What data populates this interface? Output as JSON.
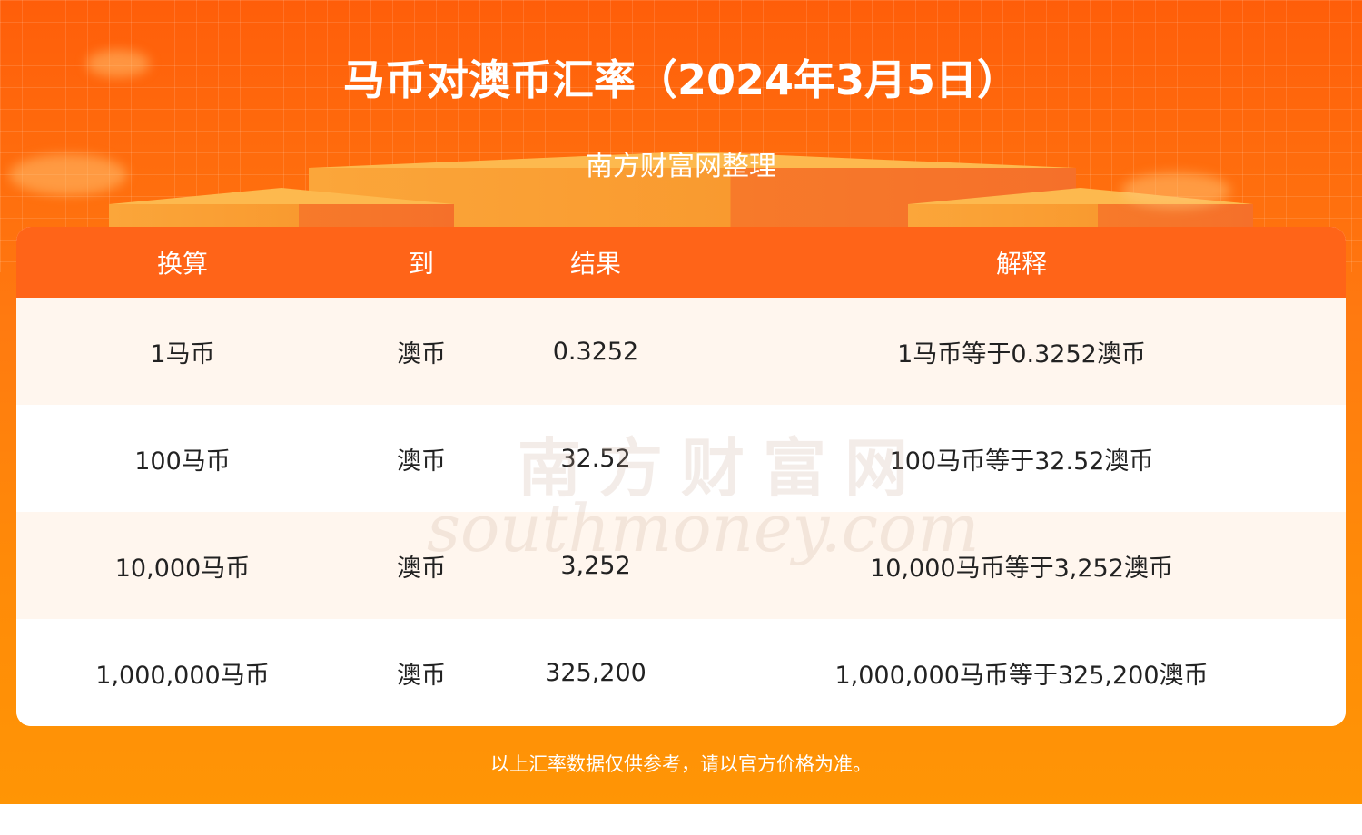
{
  "header": {
    "title": "马币对澳币汇率（2024年3月5日）",
    "subtitle": "南方财富网整理"
  },
  "table": {
    "columns": [
      "换算",
      "到",
      "结果",
      "解释"
    ],
    "rows": [
      [
        "1马币",
        "澳币",
        "0.3252",
        "1马币等于0.3252澳币"
      ],
      [
        "100马币",
        "澳币",
        "32.52",
        "100马币等于32.52澳币"
      ],
      [
        "10,000马币",
        "澳币",
        "3,252",
        "10,000马币等于3,252澳币"
      ],
      [
        "1,000,000马币",
        "澳币",
        "325,200",
        "1,000,000马币等于325,200澳币"
      ]
    ]
  },
  "watermark": {
    "cn": "南方财富网",
    "en": "southmoney.com"
  },
  "footer": {
    "note": "以上汇率数据仅供参考，请以官方价格为准。"
  },
  "colors": {
    "header_bg": "#ff6418",
    "page_bg": "#ff7a10",
    "odd_row": "#fff6ee"
  }
}
